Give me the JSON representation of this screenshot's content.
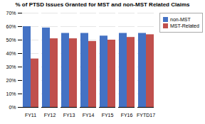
{
  "chart_data": {
    "type": "bar",
    "title": "% of PTSD Issues Granted for MST and non-MST Related Claims",
    "categories": [
      "FY11",
      "FY12",
      "FY13",
      "FY14",
      "FY15",
      "FY16",
      "FYTD17"
    ],
    "series": [
      {
        "name": "non-MST",
        "color": "#4472C4",
        "values": [
          60,
          59,
          55,
          55,
          53,
          55,
          55
        ]
      },
      {
        "name": "MST-Related",
        "color": "#C0504D",
        "values": [
          36,
          51,
          51,
          49,
          50,
          52,
          54
        ]
      }
    ],
    "ylim": [
      0,
      70
    ],
    "yticks": [
      {
        "value": 0,
        "label": "0%"
      },
      {
        "value": 10,
        "label": "10%"
      },
      {
        "value": 20,
        "label": "20%"
      },
      {
        "value": 30,
        "label": "30%"
      },
      {
        "value": 40,
        "label": "40%"
      },
      {
        "value": 50,
        "label": "50%"
      },
      {
        "value": 60,
        "label": "60%"
      },
      {
        "value": 70,
        "label": "70%"
      }
    ],
    "grid": true,
    "legend": "upper right"
  }
}
